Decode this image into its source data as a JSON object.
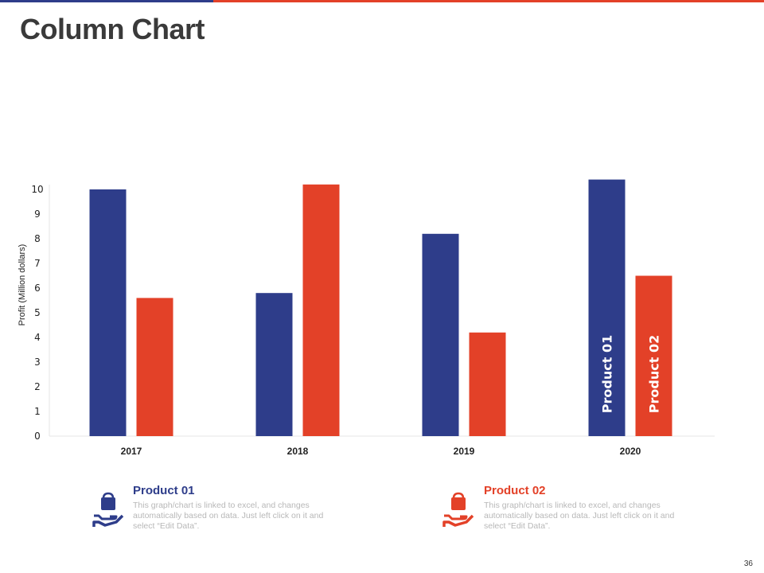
{
  "slide": {
    "title": "Column Chart",
    "page_number": "36"
  },
  "colors": {
    "product_01": "#2e3d8a",
    "product_02": "#e34128"
  },
  "chart_data": {
    "type": "bar",
    "categories": [
      "2017",
      "2018",
      "2019",
      "2020"
    ],
    "series": [
      {
        "name": "Product 01",
        "values": [
          10,
          5.8,
          8.2,
          10.4
        ]
      },
      {
        "name": "Product 02",
        "values": [
          5.6,
          10.2,
          4.2,
          6.5
        ]
      }
    ],
    "ylabel": "Profit  (Million dollars)",
    "xlabel": "",
    "ylim": [
      0,
      10
    ],
    "yticks": [
      "0",
      "1",
      "2",
      "3",
      "4",
      "5",
      "6",
      "7",
      "8",
      "9",
      "10"
    ],
    "in_bar_labels": [
      "Product 01",
      "Product 02"
    ]
  },
  "legend": [
    {
      "title": "Product 01",
      "description": "This graph/chart is linked to excel, and changes automatically based on data. Just left click on it and select “Edit Data”.",
      "icon": "hand-holding-bag-icon"
    },
    {
      "title": "Product 02",
      "description": "This graph/chart is linked to excel, and changes automatically based on data. Just left click on it and select “Edit Data”.",
      "icon": "hand-holding-bag-icon"
    }
  ]
}
